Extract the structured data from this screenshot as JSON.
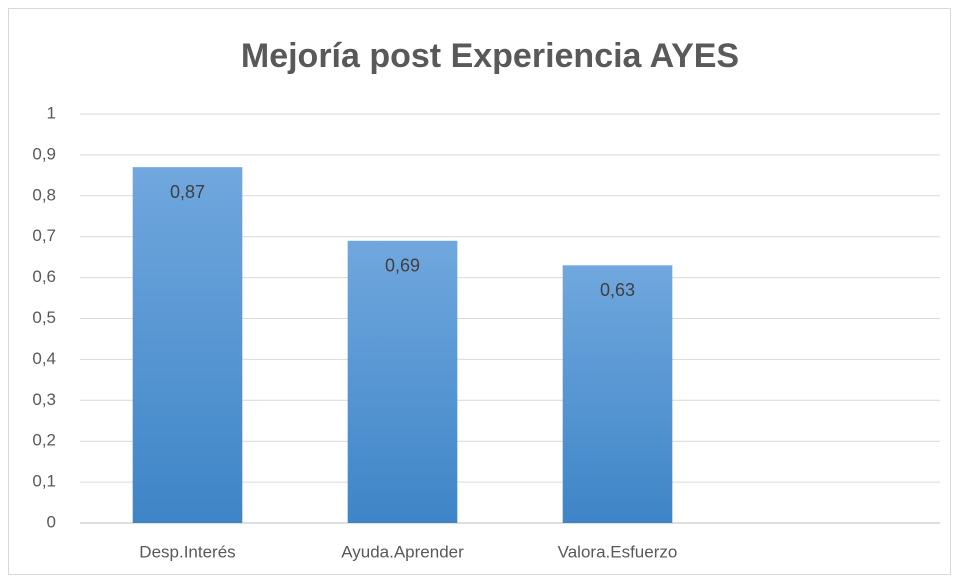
{
  "chart_data": {
    "type": "bar",
    "title": "Mejoría post Experiencia AYES",
    "categories": [
      "Desp.Interés",
      "Ayuda.Aprender",
      "Valora.Esfuerzo",
      null
    ],
    "values": [
      0.87,
      0.69,
      0.63,
      null
    ],
    "value_labels": [
      "0,87",
      "0,69",
      "0,63",
      null
    ],
    "color": "#5b9bd5",
    "ylim": [
      0,
      1
    ],
    "yticks": [
      0,
      {
        "value": 0.1,
        "label": "0,1"
      },
      {
        "value": 0.2,
        "label": "0,2"
      },
      {
        "value": 0.3,
        "label": "0,3"
      },
      {
        "value": 0.4,
        "label": "0,4"
      },
      {
        "value": 0.5,
        "label": "0,5"
      },
      {
        "value": 0.6,
        "label": "0,6"
      },
      {
        "value": 0.7,
        "label": "0,7"
      },
      {
        "value": 0.8,
        "label": "0,8"
      },
      {
        "value": 0.9,
        "label": "0,9"
      },
      1
    ],
    "grid": true
  }
}
